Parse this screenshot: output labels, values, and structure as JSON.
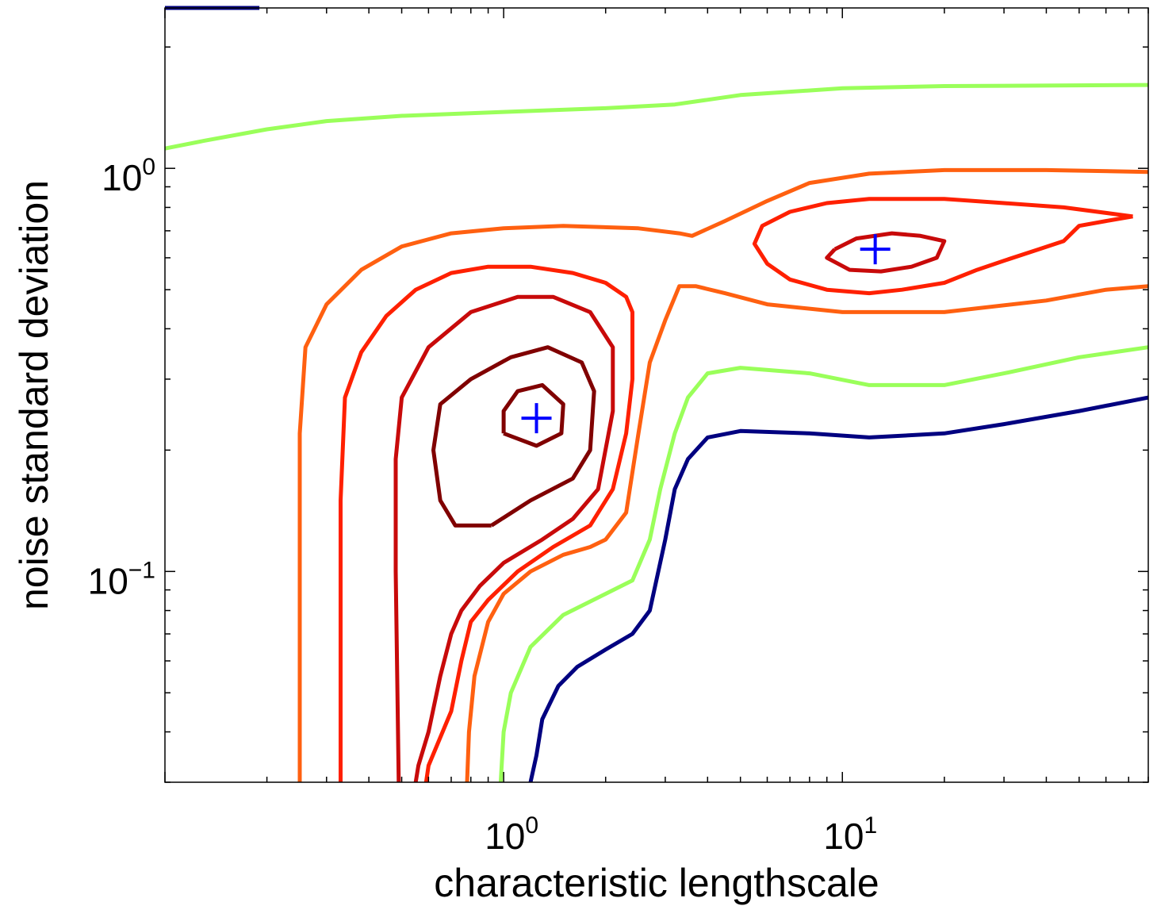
{
  "chart_data": {
    "type": "line",
    "title": "",
    "xlabel": "characteristic lengthscale",
    "ylabel": "noise standard deviation",
    "xscale": "log",
    "yscale": "log",
    "xlim": [
      0.1,
      80
    ],
    "ylim": [
      0.03,
      2.5
    ],
    "grid": false,
    "legend": "none",
    "x_ticks": [
      {
        "base": "10",
        "exp": "0",
        "value": 1
      },
      {
        "base": "10",
        "exp": "1",
        "value": 10
      }
    ],
    "y_ticks": [
      {
        "base": "10",
        "exp": "0",
        "value": 1
      },
      {
        "base": "10",
        "exp": "−1",
        "value": 0.1
      }
    ],
    "markers": [
      {
        "x": 1.25,
        "y": 0.24,
        "symbol": "+",
        "color": "#0000ff"
      },
      {
        "x": 12.5,
        "y": 0.63,
        "symbol": "+",
        "color": "#0000ff"
      }
    ],
    "series": [
      {
        "color": "#000080",
        "points": [
          [
            0.1,
            2.5
          ],
          [
            0.19,
            2.5
          ]
        ]
      },
      {
        "color": "#9aff5a",
        "points": [
          [
            0.1,
            1.12
          ],
          [
            0.13,
            1.17
          ],
          [
            0.2,
            1.25
          ],
          [
            0.3,
            1.31
          ],
          [
            0.5,
            1.35
          ],
          [
            1,
            1.38
          ],
          [
            2,
            1.41
          ],
          [
            3.2,
            1.44
          ],
          [
            5,
            1.52
          ],
          [
            10,
            1.58
          ],
          [
            20,
            1.6
          ],
          [
            80,
            1.61
          ]
        ]
      },
      {
        "color": "#ff6010",
        "points": [
          [
            0.25,
            0.03
          ],
          [
            0.25,
            0.22
          ],
          [
            0.26,
            0.36
          ],
          [
            0.3,
            0.46
          ],
          [
            0.38,
            0.56
          ],
          [
            0.5,
            0.64
          ],
          [
            0.7,
            0.69
          ],
          [
            1,
            0.71
          ],
          [
            1.5,
            0.72
          ],
          [
            2.5,
            0.71
          ],
          [
            3.3,
            0.69
          ],
          [
            3.6,
            0.68
          ],
          [
            4.5,
            0.74
          ],
          [
            6,
            0.83
          ],
          [
            8,
            0.92
          ],
          [
            12,
            0.97
          ],
          [
            20,
            0.99
          ],
          [
            40,
            0.99
          ],
          [
            80,
            0.98
          ]
        ]
      },
      {
        "color": "#ff2000",
        "points": [
          [
            0.33,
            0.03
          ],
          [
            0.33,
            0.15
          ],
          [
            0.34,
            0.27
          ],
          [
            0.38,
            0.35
          ],
          [
            0.45,
            0.43
          ],
          [
            0.55,
            0.5
          ],
          [
            0.7,
            0.55
          ],
          [
            0.9,
            0.57
          ],
          [
            1.2,
            0.57
          ],
          [
            1.6,
            0.55
          ],
          [
            2,
            0.52
          ],
          [
            2.3,
            0.48
          ],
          [
            2.4,
            0.44
          ],
          [
            2.4,
            0.3
          ],
          [
            2.3,
            0.22
          ],
          [
            2.1,
            0.16
          ],
          [
            1.8,
            0.13
          ],
          [
            1.4,
            0.115
          ],
          [
            1.1,
            0.1
          ],
          [
            0.9,
            0.085
          ],
          [
            0.8,
            0.075
          ],
          [
            0.75,
            0.06
          ],
          [
            0.7,
            0.045
          ],
          [
            0.6,
            0.033
          ],
          [
            0.59,
            0.03
          ]
        ]
      },
      {
        "color": "#c80a0a",
        "points": [
          [
            0.49,
            0.03
          ],
          [
            0.48,
            0.1
          ],
          [
            0.48,
            0.19
          ],
          [
            0.5,
            0.27
          ],
          [
            0.6,
            0.36
          ],
          [
            0.8,
            0.44
          ],
          [
            1.1,
            0.48
          ],
          [
            1.4,
            0.48
          ],
          [
            1.8,
            0.44
          ],
          [
            2.1,
            0.36
          ],
          [
            2.1,
            0.25
          ],
          [
            1.9,
            0.16
          ],
          [
            1.6,
            0.135
          ],
          [
            1.3,
            0.12
          ],
          [
            1,
            0.105
          ],
          [
            0.85,
            0.092
          ],
          [
            0.75,
            0.08
          ],
          [
            0.7,
            0.07
          ],
          [
            0.65,
            0.055
          ],
          [
            0.6,
            0.04
          ],
          [
            0.56,
            0.033
          ],
          [
            0.55,
            0.03
          ]
        ]
      },
      {
        "color": "#ff6010",
        "points": [
          [
            0.78,
            0.03
          ],
          [
            0.79,
            0.04
          ],
          [
            0.82,
            0.055
          ],
          [
            0.9,
            0.075
          ],
          [
            1,
            0.088
          ],
          [
            1.2,
            0.1
          ],
          [
            1.5,
            0.11
          ],
          [
            1.8,
            0.115
          ],
          [
            2,
            0.12
          ],
          [
            2.3,
            0.14
          ],
          [
            2.5,
            0.22
          ],
          [
            2.7,
            0.33
          ],
          [
            3,
            0.42
          ],
          [
            3.3,
            0.51
          ],
          [
            3.7,
            0.51
          ],
          [
            4.5,
            0.49
          ],
          [
            6,
            0.46
          ],
          [
            10,
            0.44
          ],
          [
            20,
            0.44
          ],
          [
            40,
            0.47
          ],
          [
            60,
            0.5
          ],
          [
            80,
            0.51
          ]
        ]
      },
      {
        "color": "#9aff5a",
        "points": [
          [
            0.98,
            0.03
          ],
          [
            1,
            0.04
          ],
          [
            1.05,
            0.05
          ],
          [
            1.2,
            0.065
          ],
          [
            1.5,
            0.078
          ],
          [
            2,
            0.088
          ],
          [
            2.4,
            0.095
          ],
          [
            2.7,
            0.12
          ],
          [
            2.9,
            0.16
          ],
          [
            3.2,
            0.22
          ],
          [
            3.5,
            0.27
          ],
          [
            4,
            0.31
          ],
          [
            5,
            0.32
          ],
          [
            8,
            0.31
          ],
          [
            12,
            0.29
          ],
          [
            20,
            0.29
          ],
          [
            30,
            0.31
          ],
          [
            50,
            0.34
          ],
          [
            80,
            0.36
          ]
        ]
      },
      {
        "color": "#000080",
        "points": [
          [
            1.2,
            0.03
          ],
          [
            1.25,
            0.035
          ],
          [
            1.3,
            0.043
          ],
          [
            1.45,
            0.052
          ],
          [
            1.65,
            0.058
          ],
          [
            2,
            0.064
          ],
          [
            2.4,
            0.07
          ],
          [
            2.7,
            0.08
          ],
          [
            3,
            0.12
          ],
          [
            3.2,
            0.16
          ],
          [
            3.5,
            0.19
          ],
          [
            4,
            0.215
          ],
          [
            5,
            0.223
          ],
          [
            8,
            0.22
          ],
          [
            12,
            0.215
          ],
          [
            20,
            0.22
          ],
          [
            30,
            0.232
          ],
          [
            50,
            0.25
          ],
          [
            80,
            0.27
          ]
        ]
      },
      {
        "color": "#ff2000",
        "points": [
          [
            72,
            0.76
          ],
          [
            60,
            0.74
          ],
          [
            50,
            0.72
          ],
          [
            45,
            0.66
          ],
          [
            38,
            0.63
          ],
          [
            30,
            0.59
          ],
          [
            25,
            0.56
          ],
          [
            20,
            0.52
          ],
          [
            15,
            0.5
          ],
          [
            12,
            0.49
          ],
          [
            9,
            0.5
          ],
          [
            7,
            0.53
          ],
          [
            6,
            0.58
          ],
          [
            5.5,
            0.65
          ],
          [
            5.8,
            0.72
          ],
          [
            7,
            0.78
          ],
          [
            9,
            0.82
          ],
          [
            12,
            0.84
          ],
          [
            20,
            0.84
          ],
          [
            30,
            0.82
          ],
          [
            45,
            0.8
          ],
          [
            72,
            0.76
          ]
        ]
      },
      {
        "color": "#c80a0a",
        "points": [
          [
            9.5,
            0.63
          ],
          [
            11,
            0.67
          ],
          [
            14,
            0.69
          ],
          [
            17,
            0.68
          ],
          [
            20,
            0.66
          ],
          [
            19,
            0.6
          ],
          [
            16,
            0.57
          ],
          [
            13,
            0.555
          ],
          [
            10.5,
            0.56
          ],
          [
            9,
            0.6
          ],
          [
            9.5,
            0.63
          ]
        ]
      },
      {
        "color": "#800000",
        "points": [
          [
            0.92,
            0.13
          ],
          [
            1.2,
            0.15
          ],
          [
            1.6,
            0.17
          ],
          [
            1.8,
            0.2
          ],
          [
            1.85,
            0.28
          ],
          [
            1.7,
            0.33
          ],
          [
            1.35,
            0.36
          ],
          [
            1.05,
            0.34
          ],
          [
            0.8,
            0.3
          ],
          [
            0.65,
            0.26
          ],
          [
            0.62,
            0.2
          ],
          [
            0.65,
            0.15
          ],
          [
            0.72,
            0.13
          ],
          [
            0.92,
            0.13
          ]
        ]
      },
      {
        "color": "#800000",
        "points": [
          [
            1.0,
            0.22
          ],
          [
            1.0,
            0.25
          ],
          [
            1.1,
            0.28
          ],
          [
            1.3,
            0.29
          ],
          [
            1.5,
            0.26
          ],
          [
            1.48,
            0.22
          ],
          [
            1.25,
            0.205
          ],
          [
            1.0,
            0.22
          ]
        ]
      }
    ]
  }
}
